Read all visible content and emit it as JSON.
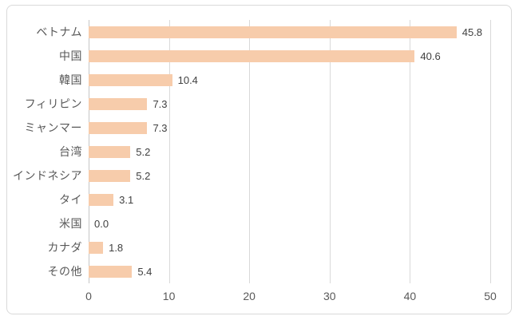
{
  "chart_data": {
    "type": "bar",
    "orientation": "horizontal",
    "title": "",
    "xlabel": "",
    "ylabel": "",
    "categories": [
      "ベトナム",
      "中国",
      "韓国",
      "フィリピン",
      "ミャンマー",
      "台湾",
      "インドネシア",
      "タイ",
      "米国",
      "カナダ",
      "その他"
    ],
    "values": [
      45.8,
      40.6,
      10.4,
      7.3,
      7.3,
      5.2,
      5.2,
      3.1,
      0.0,
      1.8,
      5.4
    ],
    "value_labels": [
      "45.8",
      "40.6",
      "10.4",
      "7.3",
      "7.3",
      "5.2",
      "5.2",
      "3.1",
      "0.0",
      "1.8",
      "5.4"
    ],
    "xlim": [
      0,
      50
    ],
    "x_ticks": [
      0,
      10,
      20,
      30,
      40,
      50
    ],
    "grid": "vertical",
    "legend": "none",
    "colors": {
      "bar": "#F7CCAB",
      "gridline": "#D9D9D9",
      "axis_line": "#C6C6C6",
      "category_label": "#595959",
      "value_label": "#404040",
      "tick_label": "#595959",
      "frame_border": "#D9D9D9",
      "background": "#FFFFFF"
    }
  }
}
